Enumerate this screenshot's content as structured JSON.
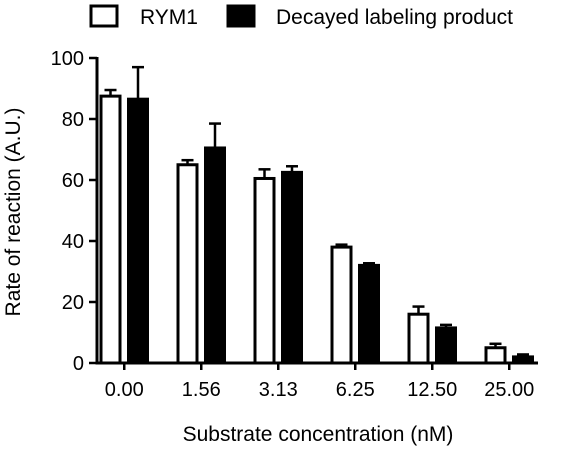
{
  "chart_data": {
    "type": "bar",
    "categories": [
      "0.00",
      "1.56",
      "3.13",
      "6.25",
      "12.50",
      "25.00"
    ],
    "series": [
      {
        "name": "RYM1",
        "values": [
          87.5,
          65,
          60.5,
          38,
          16,
          5
        ],
        "errors": [
          2,
          1.5,
          3,
          0.8,
          2.5,
          1.3
        ],
        "fill": "#ffffff",
        "stroke": "#000000"
      },
      {
        "name": "Decayed labeling product",
        "values": [
          86.5,
          70.5,
          62.5,
          32,
          11.5,
          2
        ],
        "errors": [
          10.5,
          8,
          2,
          0.7,
          1,
          0.8
        ],
        "fill": "#000000",
        "stroke": "#000000"
      }
    ],
    "xlabel": "Substrate concentration (nM)",
    "ylabel": "Rate of reaction (A.U.)",
    "ylim": [
      0,
      100
    ],
    "yticks": [
      0,
      20,
      40,
      60,
      80,
      100
    ],
    "grid": false,
    "legend": "top",
    "error_bars": "upper"
  }
}
